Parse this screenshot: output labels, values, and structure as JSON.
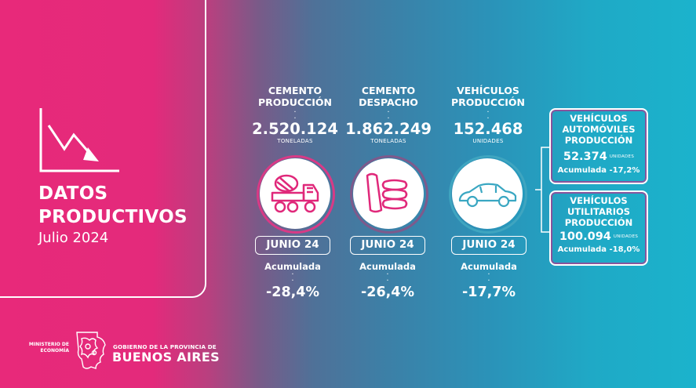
{
  "header": {
    "title_line1": "DATOS",
    "title_line2": "PRODUCTIVOS",
    "subtitle": "Julio 2024",
    "trend_icon": "trend-down-icon"
  },
  "indicators": [
    {
      "head_line1": "CEMENTO",
      "head_line2": "PRODUCCIÓN",
      "value": "2.520.124",
      "unit": "TONELADAS",
      "icon": "cement-mixer-truck-icon",
      "period": "JUNIO 24",
      "acc_label": "Acumulada",
      "acc_value": "-28,4%"
    },
    {
      "head_line1": "CEMENTO",
      "head_line2": "DESPACHO",
      "value": "1.862.249",
      "unit": "TONELADAS",
      "icon": "cement-bags-icon",
      "period": "JUNIO 24",
      "acc_label": "Acumulada",
      "acc_value": "-26,4%"
    },
    {
      "head_line1": "VEHÍCULOS",
      "head_line2": "PRODUCCIÓN",
      "value": "152.468",
      "unit": "UNIDADES",
      "icon": "car-icon",
      "period": "JUNIO 24",
      "acc_label": "Acumulada",
      "acc_value": "-17,7%"
    }
  ],
  "breakdown": [
    {
      "line1": "VEHÍCULOS",
      "line2": "AUTOMÓVILES",
      "line3": "PRODUCCIÓN",
      "value": "52.374",
      "unit": "UNIDADES",
      "acc": "Acumulada -17,2%"
    },
    {
      "line1": "VEHÍCULOS",
      "line2": "UTILITARIOS",
      "line3": "PRODUCCIÓN",
      "value": "100.094",
      "unit": "UNIDADES",
      "acc": "Acumulada -18,0%"
    }
  ],
  "footer": {
    "ministerio_line1": "MINISTERIO DE",
    "ministerio_line2": "ECONOMÍA",
    "gobierno": "GOBIERNO DE LA PROVINCIA DE",
    "provincia": "BUENOS AIRES",
    "logo_icon": "province-map-logo-icon"
  },
  "colors": {
    "pink": "#e8297a",
    "teal": "#1bb3cc",
    "icon_pink": "#e0287a",
    "icon_teal": "#3aa7c2"
  }
}
